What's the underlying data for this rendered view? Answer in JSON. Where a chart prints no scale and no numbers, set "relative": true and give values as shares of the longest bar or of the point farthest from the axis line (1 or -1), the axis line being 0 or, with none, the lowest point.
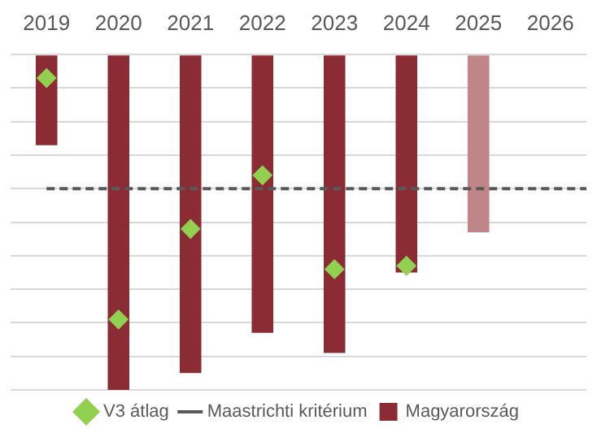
{
  "chart_data": {
    "type": "bar",
    "relative": true,
    "categories": [
      "2019",
      "2020",
      "2021",
      "2022",
      "2023",
      "2024",
      "2025",
      "2026"
    ],
    "series": [
      {
        "name": "Magyarország",
        "color": "#8b2c35",
        "colors": [
          "#8b2c35",
          "#8b2c35",
          "#8b2c35",
          "#8b2c35",
          "#8b2c35",
          "#8b2c35",
          "#c08589",
          null
        ],
        "values": [
          -0.27,
          -1,
          -0.95,
          -0.83,
          -0.89,
          -0.65,
          -0.53,
          null
        ]
      },
      {
        "name": "V3 átlag",
        "type": "scatter",
        "color": "#92d050",
        "marker": "diamond",
        "values": [
          -0.07,
          -0.79,
          -0.52,
          -0.36,
          -0.64,
          -0.63,
          null,
          null
        ]
      }
    ],
    "ref_lines": [
      {
        "axis": "y",
        "value": -0.4,
        "label": "Maastrichti kritérium",
        "color": "#595959",
        "line_style": "dashed"
      }
    ],
    "grid": "y",
    "legend": "bottom"
  }
}
